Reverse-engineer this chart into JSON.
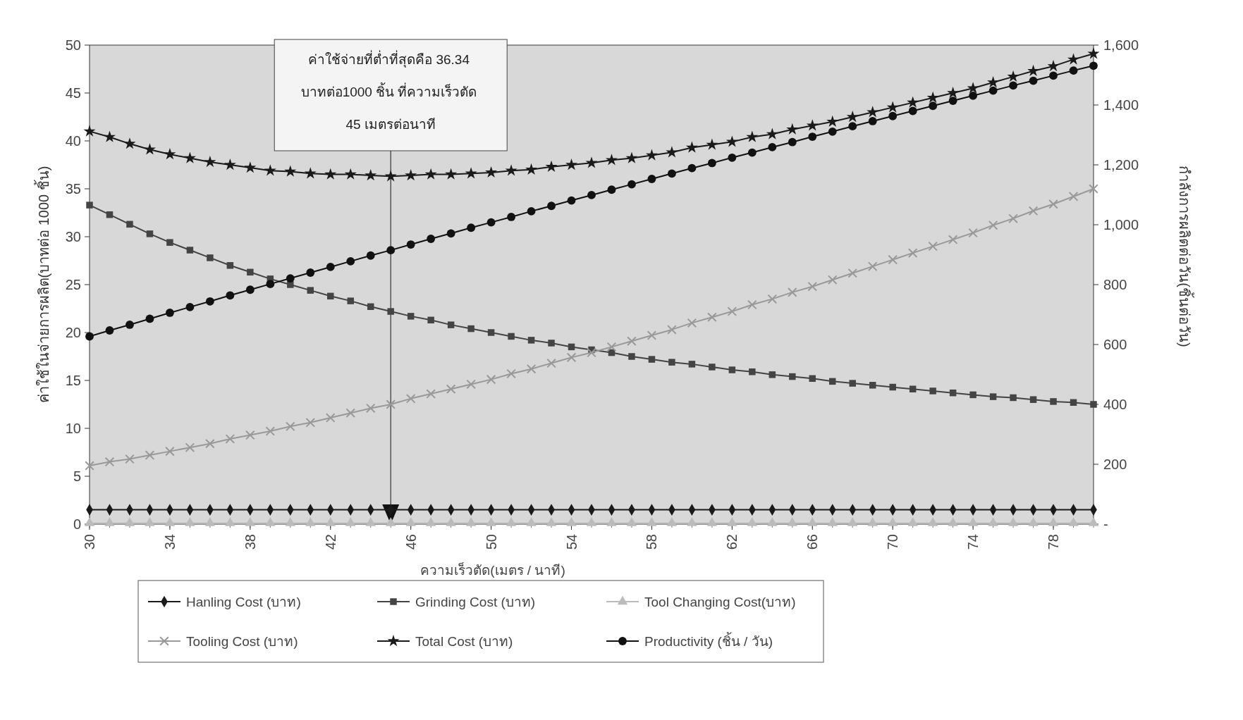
{
  "chart_data": {
    "type": "line",
    "xlabel": "ความเร็วตัด(เมตร / นาที)",
    "ylabel": "ค่าใช้ในจ่ายการผลิต(บาทต่อ 1000 ชิ้น)",
    "y2label": "กำลังการผลิตต่อวัน(ชิ้นต่อวัน)",
    "x": [
      30,
      31,
      32,
      33,
      34,
      35,
      36,
      37,
      38,
      39,
      40,
      41,
      42,
      43,
      44,
      45,
      46,
      47,
      48,
      49,
      50,
      51,
      52,
      53,
      54,
      55,
      56,
      57,
      58,
      59,
      60,
      61,
      62,
      63,
      64,
      65,
      66,
      67,
      68,
      69,
      70,
      71,
      72,
      73,
      74,
      75,
      76,
      77,
      78,
      79,
      80
    ],
    "xlim": [
      30,
      80
    ],
    "xticks": [
      30,
      34,
      38,
      42,
      46,
      50,
      54,
      58,
      62,
      66,
      70,
      74,
      78
    ],
    "ylim": [
      0,
      50
    ],
    "yticks": [
      0,
      5,
      10,
      15,
      20,
      25,
      30,
      35,
      40,
      45,
      50
    ],
    "y2lim": [
      0,
      1600
    ],
    "y2ticks": [
      {
        "value": 0,
        "label": "-"
      },
      200,
      400,
      600,
      800,
      {
        "value": 1000,
        "label": "1,000"
      },
      {
        "value": 1200,
        "label": "1,200"
      },
      {
        "value": 1400,
        "label": "1,400"
      },
      {
        "value": 1600,
        "label": "1,600"
      }
    ],
    "grid": false,
    "legend": "bottom",
    "annotations": [
      "ค่าใช้จ่ายที่ต่ำที่สุดคือ 36.34 บาทต่อ1000 ชิ้น ที่ความเร็วตัด 45 เมตรต่อนาที"
    ],
    "ref_lines": [
      {
        "axis": "x",
        "value": 45,
        "color": "#333333"
      }
    ],
    "series": [
      {
        "name": "Hanling Cost (บาท)",
        "color": "#1a1a1a",
        "marker": "diamond",
        "values": [
          1.5,
          1.5,
          1.5,
          1.5,
          1.5,
          1.5,
          1.5,
          1.5,
          1.5,
          1.5,
          1.5,
          1.5,
          1.5,
          1.5,
          1.5,
          1.5,
          1.5,
          1.5,
          1.5,
          1.5,
          1.5,
          1.5,
          1.5,
          1.5,
          1.5,
          1.5,
          1.5,
          1.5,
          1.5,
          1.5,
          1.5,
          1.5,
          1.5,
          1.5,
          1.5,
          1.5,
          1.5,
          1.5,
          1.5,
          1.5,
          1.5,
          1.5,
          1.5,
          1.5,
          1.5,
          1.5,
          1.5,
          1.5,
          1.5,
          1.5,
          1.5
        ]
      },
      {
        "name": "Grinding Cost (บาท)",
        "color": "#444444",
        "marker": "square",
        "values": [
          33.3,
          32.3,
          31.3,
          30.3,
          29.4,
          28.6,
          27.8,
          27.0,
          26.3,
          25.6,
          25.0,
          24.4,
          23.8,
          23.3,
          22.7,
          22.2,
          21.7,
          21.3,
          20.8,
          20.4,
          20.0,
          19.6,
          19.2,
          18.9,
          18.5,
          18.2,
          17.9,
          17.5,
          17.2,
          16.9,
          16.7,
          16.4,
          16.1,
          15.9,
          15.6,
          15.4,
          15.2,
          14.9,
          14.7,
          14.5,
          14.3,
          14.1,
          13.9,
          13.7,
          13.5,
          13.3,
          13.2,
          13.0,
          12.8,
          12.7,
          12.5
        ]
      },
      {
        "name": "Tool Changing  Cost(บาท)",
        "color": "#bbbbbb",
        "marker": "triangle",
        "values": [
          0.1,
          0.1,
          0.1,
          0.1,
          0.1,
          0.1,
          0.1,
          0.1,
          0.1,
          0.1,
          0.1,
          0.1,
          0.1,
          0.1,
          0.1,
          0.1,
          0.1,
          0.1,
          0.1,
          0.1,
          0.1,
          0.1,
          0.1,
          0.1,
          0.1,
          0.1,
          0.1,
          0.1,
          0.1,
          0.1,
          0.1,
          0.1,
          0.1,
          0.1,
          0.1,
          0.1,
          0.1,
          0.1,
          0.1,
          0.1,
          0.1,
          0.1,
          0.1,
          0.1,
          0.1,
          0.1,
          0.1,
          0.1,
          0.1,
          0.1,
          0.1
        ]
      },
      {
        "name": "Tooling Cost (บาท)",
        "color": "#999999",
        "marker": "cross",
        "values": [
          6.1,
          6.5,
          6.8,
          7.2,
          7.6,
          8.0,
          8.4,
          8.9,
          9.3,
          9.7,
          10.2,
          10.6,
          11.1,
          11.6,
          12.1,
          12.5,
          13.1,
          13.6,
          14.1,
          14.6,
          15.1,
          15.7,
          16.2,
          16.8,
          17.4,
          17.9,
          18.5,
          19.1,
          19.7,
          20.3,
          21.0,
          21.6,
          22.2,
          22.9,
          23.5,
          24.2,
          24.8,
          25.5,
          26.2,
          26.9,
          27.6,
          28.3,
          29.0,
          29.7,
          30.4,
          31.2,
          31.9,
          32.7,
          33.4,
          34.2,
          35.0
        ]
      },
      {
        "name": "Total Cost (บาท)",
        "color": "#1a1a1a",
        "marker": "star",
        "values": [
          41.0,
          40.4,
          39.7,
          39.1,
          38.6,
          38.2,
          37.8,
          37.5,
          37.2,
          36.9,
          36.8,
          36.6,
          36.5,
          36.5,
          36.4,
          36.3,
          36.4,
          36.5,
          36.5,
          36.6,
          36.7,
          36.9,
          37.0,
          37.3,
          37.5,
          37.7,
          38.0,
          38.2,
          38.5,
          38.8,
          39.3,
          39.6,
          39.9,
          40.4,
          40.7,
          41.2,
          41.6,
          42.0,
          42.5,
          43.0,
          43.5,
          44.0,
          44.5,
          45.0,
          45.5,
          46.1,
          46.7,
          47.3,
          47.8,
          48.5,
          49.1
        ]
      },
      {
        "name": "Productivity (ชิ้น / วัน)",
        "color": "#111111",
        "marker": "circle",
        "axis": "y2",
        "values": [
          627,
          647,
          666,
          686,
          706,
          725,
          744,
          764,
          783,
          802,
          821,
          840,
          859,
          878,
          897,
          915,
          934,
          953,
          971,
          990,
          1008,
          1026,
          1045,
          1063,
          1081,
          1099,
          1117,
          1135,
          1153,
          1171,
          1189,
          1206,
          1224,
          1241,
          1259,
          1276,
          1294,
          1311,
          1329,
          1346,
          1363,
          1380,
          1397,
          1414,
          1431,
          1448,
          1465,
          1481,
          1498,
          1515,
          1531
        ]
      }
    ]
  }
}
